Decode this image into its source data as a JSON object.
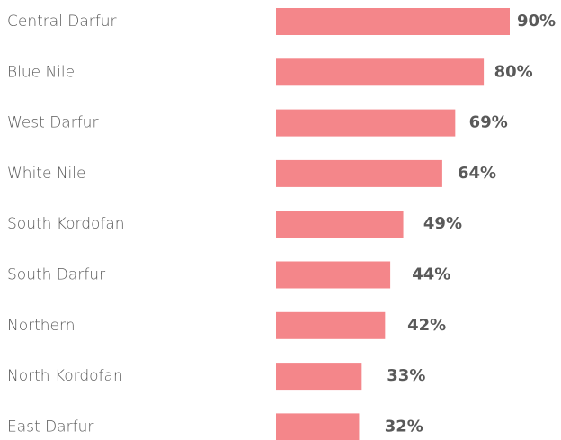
{
  "chart_data": {
    "type": "bar",
    "orientation": "horizontal",
    "categories": [
      "Central Darfur",
      "Blue Nile",
      "West Darfur",
      "White Nile",
      "South Kordofan",
      "South Darfur",
      "Northern",
      "North Kordofan",
      "East Darfur"
    ],
    "values": [
      90,
      80,
      69,
      64,
      49,
      44,
      42,
      33,
      32
    ],
    "value_labels": [
      "90%",
      "80%",
      "69%",
      "64%",
      "49%",
      "44%",
      "42%",
      "33%",
      "32%"
    ],
    "color": "#f4868a"
  }
}
